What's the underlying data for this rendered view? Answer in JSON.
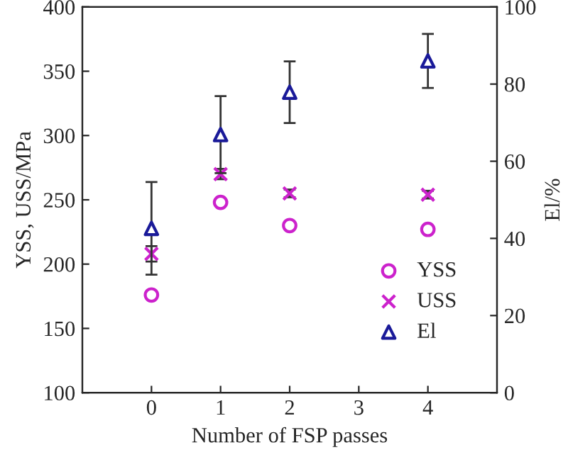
{
  "chart_data": {
    "type": "scatter",
    "xlabel": "Number of FSP passes",
    "ylabel": "YSS, USS/MPa",
    "y2label": "El/%",
    "x": [
      0,
      1,
      2,
      4
    ],
    "xlim": [
      -1,
      5
    ],
    "xticks": [
      0,
      1,
      2,
      3,
      4
    ],
    "ylim": [
      100,
      400
    ],
    "yticks": [
      100,
      150,
      200,
      250,
      300,
      350,
      400
    ],
    "y2lim": [
      0,
      100
    ],
    "y2ticks": [
      0,
      20,
      40,
      60,
      80,
      100
    ],
    "legend": "bottom right",
    "grid": false,
    "series": [
      {
        "name": "YSS",
        "color": "#cc22cc",
        "marker": "circle",
        "values": [
          176,
          248,
          230,
          227
        ]
      },
      {
        "name": "USS",
        "color": "#cc22cc",
        "marker": "cross",
        "values": [
          208,
          270,
          255,
          254
        ],
        "errors": [
          6,
          4,
          3,
          3
        ]
      },
      {
        "name": "El",
        "color": "#1a1a99",
        "marker": "triangle",
        "axis": "y2",
        "values": [
          42.6,
          66.9,
          77.9,
          86
        ],
        "errors": [
          12,
          10,
          8,
          7
        ]
      }
    ]
  }
}
